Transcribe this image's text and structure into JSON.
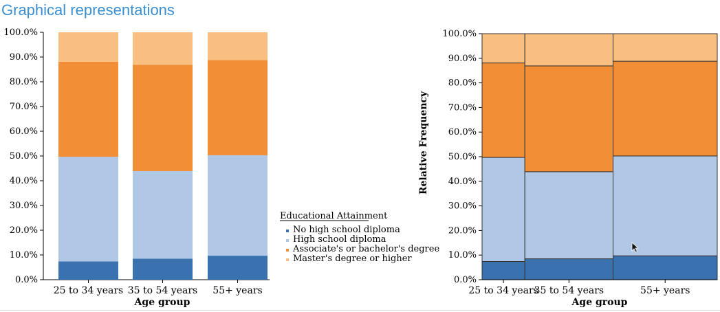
{
  "page_title": "Graphical representations",
  "colors": {
    "No high school diploma": "#3a72b0",
    "High school diploma": "#b0c7e6",
    "Associate's or bachelor's degree": "#f28e36",
    "Master's degree or higher": "#f8bf80"
  },
  "chart_data": [
    {
      "type": "bar",
      "stacked": true,
      "title": "",
      "xlabel": "Age group",
      "ylabel": "",
      "ylim": [
        0,
        100
      ],
      "yticks": [
        "0.0%",
        "10.0%",
        "20.0%",
        "30.0%",
        "40.0%",
        "50.0%",
        "60.0%",
        "70.0%",
        "80.0%",
        "90.0%",
        "100.0%"
      ],
      "categories": [
        "25 to 34 years",
        "35 to 54 years",
        "55+ years"
      ],
      "series": [
        {
          "name": "No high school diploma",
          "values": [
            7.4,
            8.5,
            9.7
          ]
        },
        {
          "name": "High school diploma",
          "values": [
            42.3,
            35.4,
            40.6
          ]
        },
        {
          "name": "Associate's or bachelor's degree",
          "values": [
            38.4,
            43.0,
            38.5
          ]
        },
        {
          "name": "Master's degree or higher",
          "values": [
            11.9,
            13.1,
            11.2
          ]
        }
      ],
      "legend": {
        "title": "Educational Attainment",
        "placement": "right"
      }
    },
    {
      "type": "mosaic",
      "title": "",
      "xlabel": "Age group",
      "ylabel": "Relative Frequency",
      "ylim": [
        0,
        100
      ],
      "yticks": [
        "0.0%",
        "10.0%",
        "20.0%",
        "30.0%",
        "40.0%",
        "50.0%",
        "60.0%",
        "70.0%",
        "80.0%",
        "90.0%",
        "100.0%"
      ],
      "categories": [
        "25 to 34 years",
        "35 to 54 years",
        "55+ years"
      ],
      "column_share": [
        18.2,
        37.5,
        44.3
      ],
      "series": [
        {
          "name": "No high school diploma",
          "values": [
            7.4,
            8.5,
            9.7
          ]
        },
        {
          "name": "High school diploma",
          "values": [
            42.3,
            35.4,
            40.6
          ]
        },
        {
          "name": "Associate's or bachelor's degree",
          "values": [
            38.4,
            43.0,
            38.5
          ]
        },
        {
          "name": "Master's degree or higher",
          "values": [
            11.9,
            13.1,
            11.2
          ]
        }
      ]
    }
  ]
}
